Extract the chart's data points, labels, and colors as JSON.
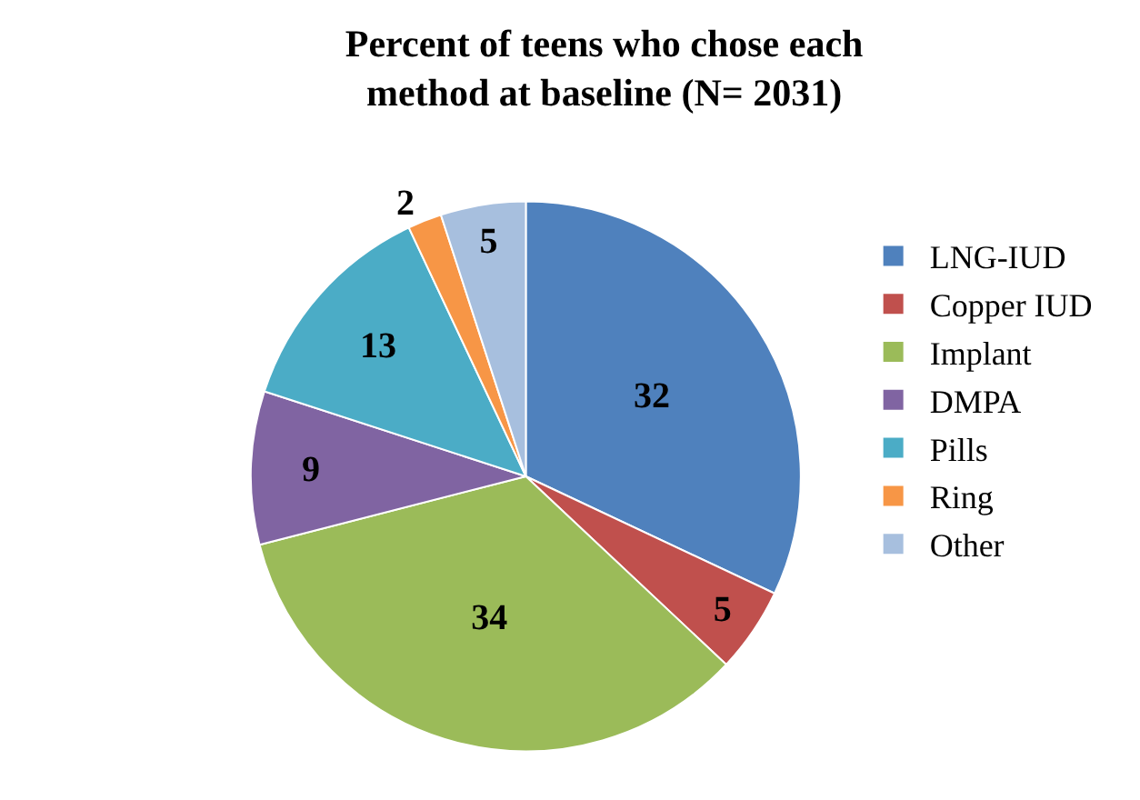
{
  "chart_data": {
    "type": "pie",
    "title": "Percent of teens who chose each method at baseline (N= 2031)",
    "categories": [
      "LNG-IUD",
      "Copper IUD",
      "Implant",
      "DMPA",
      "Pills",
      "Ring",
      "Other"
    ],
    "values": [
      32,
      5,
      34,
      9,
      13,
      2,
      5
    ],
    "colors": [
      "#4f81bd",
      "#c0504d",
      "#9bbb59",
      "#8064a2",
      "#4bacc6",
      "#f79646",
      "#a7bfde"
    ],
    "data_labels": true,
    "legend": "right"
  }
}
